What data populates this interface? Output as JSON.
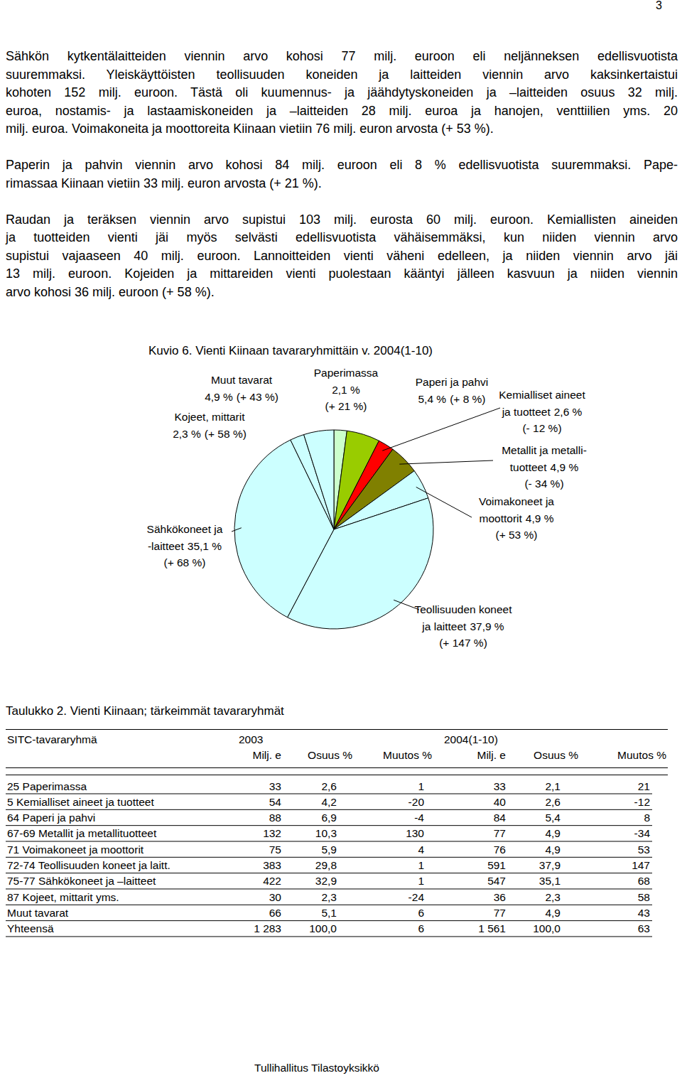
{
  "page_number": "3",
  "paragraphs": [
    [
      "Sähkön kytkentälaitteiden viennin arvo kohosi 77 milj. euroon eli neljänneksen edellisvuotista",
      "suuremmaksi. Yleiskäyttöisten teollisuuden koneiden ja laitteiden viennin arvo kaksinkertaistui",
      "kohoten 152 milj. euroon. Tästä oli kuumennus- ja jäähdytyskoneiden ja –laitteiden osuus 32 milj.",
      "euroa, nostamis- ja lastaamiskoneiden ja –laitteiden 28 milj. euroa ja hanojen, venttiilien yms. 20",
      "milj. euroa. Voimakoneita ja moottoreita Kiinaan vietiin 76 milj. euron arvosta (+ 53 %)."
    ],
    [
      "Paperin ja pahvin viennin arvo kohosi 84 milj. euroon eli 8 % edellisvuotista suuremmaksi. Pape-",
      "rimassaa Kiinaan vietiin 33 milj. euron arvosta (+ 21 %)."
    ],
    [
      "Raudan ja teräksen viennin arvo supistui 103 milj. eurosta 60 milj. euroon. Kemiallisten aineiden",
      "ja tuotteiden vienti jäi myös selvästi edellisvuotista vähäisemmäksi, kun niiden viennin arvo",
      "supistui vajaaseen 40 milj. euroon. Lannoitteiden vienti väheni edelleen, ja niiden viennin arvo jäi",
      "13 milj. euroon. Kojeiden ja mittareiden vienti puolestaan kääntyi jälleen kasvuun ja niiden viennin",
      "arvo kohosi 36 milj. euroon (+ 58 %)."
    ]
  ],
  "chart_data": {
    "type": "pie",
    "title": "Kuvio 6. Vienti Kiinaan tavararyhmittäin v. 2004(1-10)",
    "categories": [
      "Paperimassa",
      "Paperi ja pahvi",
      "Kemialliset aineet\nja tuotteet",
      "Metallit ja metalli-\ntuotteet",
      "Voimakoneet ja\nmoottorit",
      "Teollisuuden koneet\nja laitteet",
      "Sähkökoneet ja\n-laitteet",
      "Kojeet, mittarit",
      "Muut tavarat"
    ],
    "values": [
      2.1,
      5.4,
      2.6,
      4.9,
      4.9,
      37.9,
      35.1,
      2.3,
      4.9
    ],
    "value_labels": [
      "2,1 %",
      "5,4 %",
      "2,6 %",
      "4,9 %",
      "4,9 %",
      "37,9 %",
      "35,1 %",
      "2,3 %",
      "4,9 %"
    ],
    "changes": [
      21,
      8,
      -12,
      -34,
      53,
      147,
      68,
      58,
      43
    ],
    "change_labels": [
      "(+ 21 %)",
      "(+ 8 %)",
      "(- 12 %)",
      "(- 34 %)",
      "(+ 53 %)",
      "(+ 147 %)",
      "(+ 68 %)",
      "(+ 58 %)",
      "(+ 43 %)"
    ],
    "colors": [
      "#ccffcc",
      "#99cc00",
      "#ff0000",
      "#808000",
      "#ccffff",
      "#ccffff",
      "#ccffff",
      "#ccffff",
      "#ccffff"
    ],
    "data_labels": true
  },
  "table": {
    "title": "Taulukko 2. Vienti Kiinaan; tärkeimmät tavararyhmät",
    "header": {
      "label": "SITC-tavararyhmä",
      "years": [
        "2003",
        "2004(1-10)"
      ],
      "columns": [
        "Milj. e",
        "Osuus %",
        "Muutos %",
        "Milj. e",
        "Osuus %",
        "Muutos %"
      ]
    },
    "rows": [
      [
        "25 Paperimassa",
        "33",
        "2,6",
        "1",
        "33",
        "2,1",
        "21"
      ],
      [
        "5 Kemialliset aineet ja tuotteet",
        "54",
        "4,2",
        "-20",
        "40",
        "2,6",
        "-12"
      ],
      [
        "64 Paperi ja pahvi",
        "88",
        "6,9",
        "-4",
        "84",
        "5,4",
        "8"
      ],
      [
        "67-69 Metallit ja metallituotteet",
        "132",
        "10,3",
        "130",
        "77",
        "4,9",
        "-34"
      ],
      [
        "71 Voimakoneet ja moottorit",
        "75",
        "5,9",
        "4",
        "76",
        "4,9",
        "53"
      ],
      [
        "72-74 Teollisuuden koneet ja laitt.",
        "383",
        "29,8",
        "1",
        "591",
        "37,9",
        "147"
      ],
      [
        "75-77 Sähkökoneet ja –laitteet",
        "422",
        "32,9",
        "1",
        "547",
        "35,1",
        "68"
      ],
      [
        "87 Kojeet, mittarit yms.",
        "30",
        "2,3",
        "-24",
        "36",
        "2,3",
        "58"
      ],
      [
        "Muut tavarat",
        "66",
        "5,1",
        "6",
        "77",
        "4,9",
        "43"
      ],
      [
        "Yhteensä",
        "1 283",
        "100,0",
        "6",
        "1 561",
        "100,0",
        "63"
      ]
    ]
  },
  "footer": "Tullihallitus Tilastoyksikkö"
}
